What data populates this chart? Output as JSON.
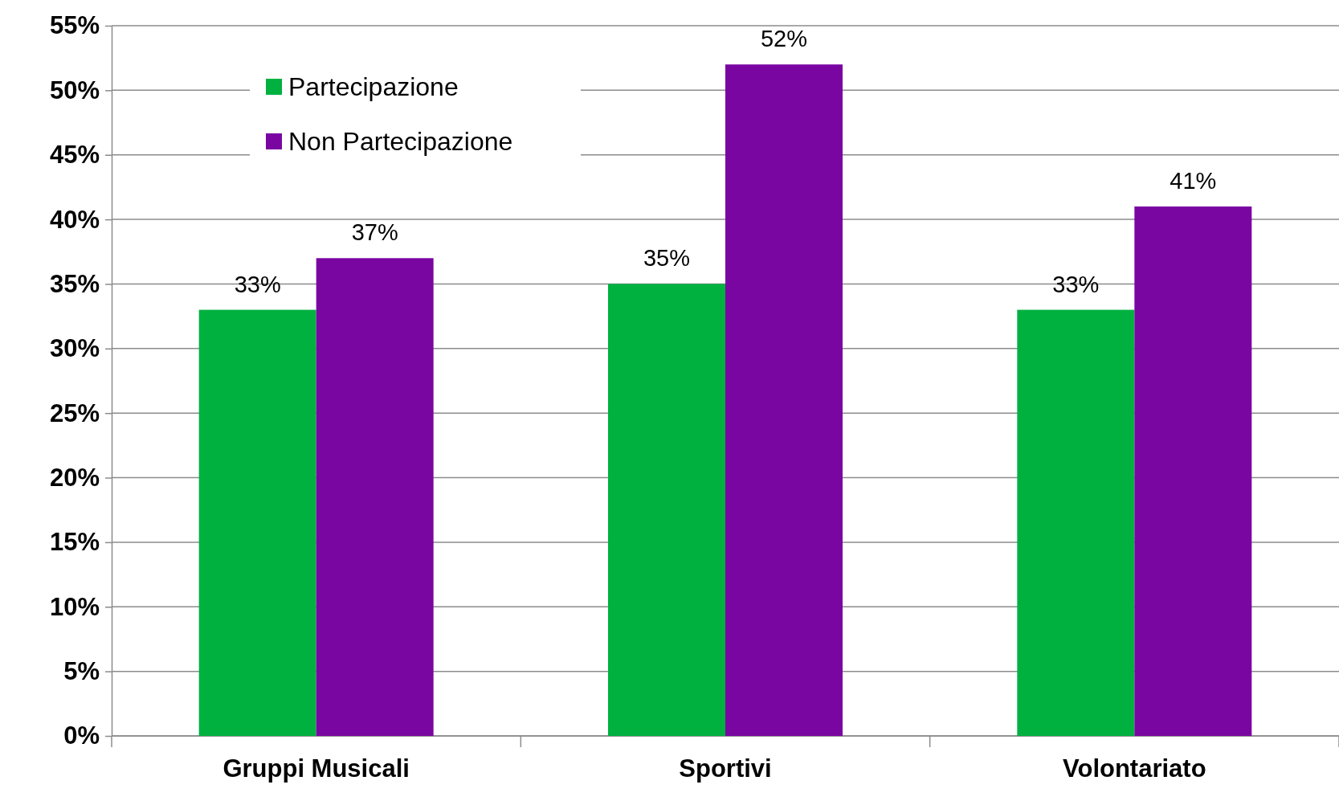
{
  "chart_data": {
    "type": "bar",
    "categories": [
      "Gruppi Musicali",
      "Sportivi",
      "Volontariato"
    ],
    "series": [
      {
        "name": "Partecipazione",
        "color": "#00b140",
        "values": [
          33,
          35,
          33
        ],
        "value_labels": [
          "33%",
          "35%",
          "33%"
        ]
      },
      {
        "name": "Non Partecipazione",
        "color": "#7a06a2",
        "values": [
          37,
          52,
          41
        ],
        "value_labels": [
          "37%",
          "52%",
          "41%"
        ]
      }
    ],
    "ylim": [
      0,
      55
    ],
    "yticks": [
      {
        "value": 0,
        "label": "0%"
      },
      {
        "value": 5,
        "label": "5%"
      },
      {
        "value": 10,
        "label": "10%"
      },
      {
        "value": 15,
        "label": "15%"
      },
      {
        "value": 20,
        "label": "20%"
      },
      {
        "value": 25,
        "label": "25%"
      },
      {
        "value": 30,
        "label": "30%"
      },
      {
        "value": 35,
        "label": "35%"
      },
      {
        "value": 40,
        "label": "40%"
      },
      {
        "value": 45,
        "label": "45%"
      },
      {
        "value": 50,
        "label": "50%"
      },
      {
        "value": 55,
        "label": "55%"
      }
    ],
    "grid": "y",
    "legend": "top left"
  }
}
